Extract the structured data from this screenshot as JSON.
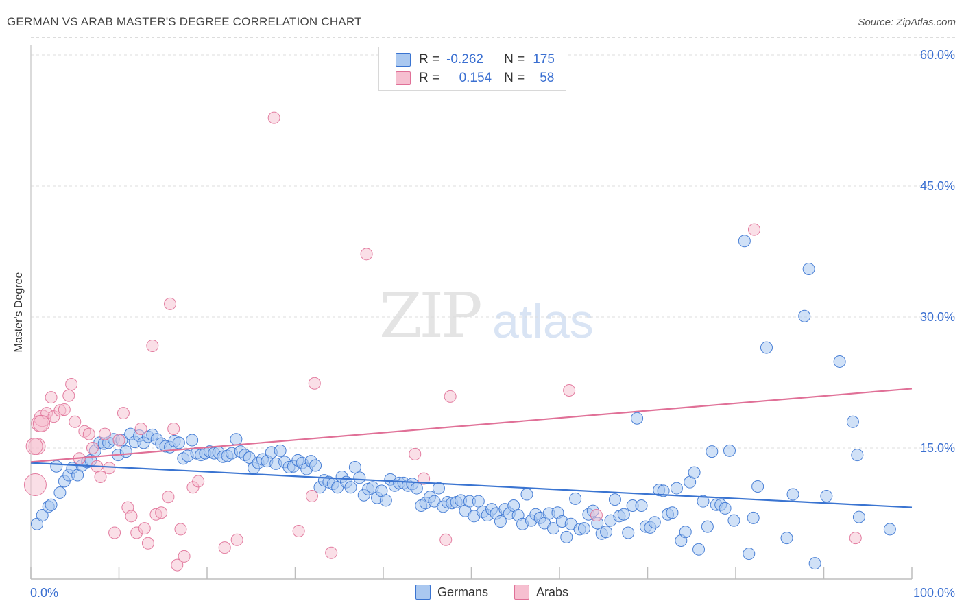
{
  "title": "GERMAN VS ARAB MASTER'S DEGREE CORRELATION CHART",
  "source": "Source: ZipAtlas.com",
  "watermark": {
    "zip": "ZIP",
    "atlas": "atlas"
  },
  "colors": {
    "blue": "#3a74d1",
    "blue_fill": "#aac8f0",
    "pink": "#e07097",
    "pink_fill": "#f6bfd0",
    "grid": "#dcdcdc",
    "tick_label": "#3a6fd1"
  },
  "legend_top": {
    "rows": [
      {
        "r_label": "R =",
        "r_value": "-0.262",
        "n_label": "N =",
        "n_value": "175"
      },
      {
        "r_label": "R =",
        "r_value": "0.154",
        "n_label": "N =",
        "n_value": "58"
      }
    ]
  },
  "legend_bottom": {
    "germans": "Germans",
    "arabs": "Arabs"
  },
  "chart_data": {
    "type": "scatter",
    "title": "GERMAN VS ARAB MASTER'S DEGREE CORRELATION CHART",
    "xlabel": "",
    "ylabel": "Master's Degree",
    "xlim": [
      0,
      100
    ],
    "ylim": [
      0,
      62
    ],
    "x_tick_labels": [
      "0.0%",
      "100.0%"
    ],
    "y_ticks": [
      15,
      30,
      45,
      60
    ],
    "y_tick_labels": [
      "15.0%",
      "30.0%",
      "45.0%",
      "60.0%"
    ],
    "grid": "horizontal dashed",
    "legend": "bottom-center",
    "series": [
      {
        "name": "Germans",
        "color": "#3a74d1",
        "trend": {
          "x": [
            0,
            100
          ],
          "y": [
            13.3,
            8.2
          ]
        },
        "points": [
          [
            0.7,
            6.3
          ],
          [
            1.3,
            7.3
          ],
          [
            2.0,
            8.3
          ],
          [
            2.3,
            8.5
          ],
          [
            2.9,
            12.9
          ],
          [
            3.3,
            9.9
          ],
          [
            3.8,
            11.2
          ],
          [
            4.3,
            11.9
          ],
          [
            4.7,
            12.7
          ],
          [
            5.3,
            11.9
          ],
          [
            5.8,
            13.0
          ],
          [
            6.4,
            13.4
          ],
          [
            6.8,
            13.6
          ],
          [
            7.3,
            14.7
          ],
          [
            7.8,
            15.6
          ],
          [
            8.3,
            15.5
          ],
          [
            8.8,
            15.6
          ],
          [
            9.4,
            16.0
          ],
          [
            9.9,
            14.2
          ],
          [
            10.3,
            15.9
          ],
          [
            10.8,
            14.6
          ],
          [
            11.3,
            16.6
          ],
          [
            11.8,
            15.7
          ],
          [
            12.3,
            16.4
          ],
          [
            12.8,
            15.6
          ],
          [
            13.3,
            16.3
          ],
          [
            13.8,
            16.5
          ],
          [
            14.3,
            16.0
          ],
          [
            14.8,
            15.5
          ],
          [
            15.3,
            15.2
          ],
          [
            15.8,
            15.1
          ],
          [
            16.3,
            15.8
          ],
          [
            16.8,
            15.6
          ],
          [
            17.3,
            13.8
          ],
          [
            17.8,
            14.1
          ],
          [
            18.3,
            15.9
          ],
          [
            18.8,
            14.4
          ],
          [
            19.3,
            14.2
          ],
          [
            19.8,
            14.4
          ],
          [
            20.3,
            14.6
          ],
          [
            20.8,
            14.4
          ],
          [
            21.3,
            14.5
          ],
          [
            21.8,
            14.0
          ],
          [
            22.3,
            14.1
          ],
          [
            22.8,
            14.4
          ],
          [
            23.3,
            16.0
          ],
          [
            23.8,
            14.6
          ],
          [
            24.3,
            14.2
          ],
          [
            24.8,
            13.9
          ],
          [
            25.3,
            12.7
          ],
          [
            25.8,
            13.3
          ],
          [
            26.3,
            13.7
          ],
          [
            26.8,
            13.5
          ],
          [
            27.3,
            14.5
          ],
          [
            27.8,
            13.2
          ],
          [
            28.3,
            14.7
          ],
          [
            28.8,
            13.4
          ],
          [
            29.3,
            12.8
          ],
          [
            29.8,
            12.9
          ],
          [
            30.3,
            13.6
          ],
          [
            30.8,
            13.3
          ],
          [
            31.3,
            12.6
          ],
          [
            31.8,
            13.5
          ],
          [
            32.3,
            13.0
          ],
          [
            32.8,
            10.5
          ],
          [
            33.3,
            11.3
          ],
          [
            33.8,
            11.1
          ],
          [
            34.3,
            10.9
          ],
          [
            34.8,
            10.5
          ],
          [
            35.3,
            11.7
          ],
          [
            35.8,
            11.1
          ],
          [
            36.3,
            10.5
          ],
          [
            36.8,
            12.8
          ],
          [
            37.3,
            11.6
          ],
          [
            37.8,
            9.6
          ],
          [
            38.3,
            10.3
          ],
          [
            38.8,
            10.5
          ],
          [
            39.3,
            9.3
          ],
          [
            39.8,
            10.1
          ],
          [
            40.3,
            9.0
          ],
          [
            40.8,
            11.4
          ],
          [
            41.3,
            10.7
          ],
          [
            41.8,
            11.0
          ],
          [
            42.3,
            11.0
          ],
          [
            42.8,
            10.7
          ],
          [
            43.3,
            10.9
          ],
          [
            43.8,
            10.4
          ],
          [
            44.3,
            8.4
          ],
          [
            44.8,
            8.7
          ],
          [
            45.3,
            9.4
          ],
          [
            45.8,
            8.9
          ],
          [
            46.3,
            10.4
          ],
          [
            46.8,
            8.3
          ],
          [
            47.3,
            8.8
          ],
          [
            47.8,
            8.7
          ],
          [
            48.3,
            8.8
          ],
          [
            48.8,
            9.0
          ],
          [
            49.3,
            7.8
          ],
          [
            49.8,
            8.9
          ],
          [
            50.3,
            7.2
          ],
          [
            50.8,
            8.9
          ],
          [
            51.3,
            7.7
          ],
          [
            51.8,
            7.3
          ],
          [
            52.3,
            8.0
          ],
          [
            52.8,
            7.5
          ],
          [
            53.3,
            6.6
          ],
          [
            53.8,
            8.0
          ],
          [
            54.3,
            7.5
          ],
          [
            54.8,
            8.4
          ],
          [
            55.3,
            7.3
          ],
          [
            55.8,
            6.3
          ],
          [
            56.3,
            9.7
          ],
          [
            56.8,
            6.7
          ],
          [
            57.3,
            7.4
          ],
          [
            57.8,
            7.0
          ],
          [
            58.3,
            6.4
          ],
          [
            58.8,
            7.5
          ],
          [
            59.3,
            5.8
          ],
          [
            59.8,
            7.6
          ],
          [
            60.3,
            6.6
          ],
          [
            60.8,
            4.8
          ],
          [
            61.3,
            6.3
          ],
          [
            61.8,
            9.2
          ],
          [
            62.3,
            5.7
          ],
          [
            62.8,
            5.8
          ],
          [
            63.3,
            7.4
          ],
          [
            63.8,
            7.8
          ],
          [
            64.3,
            6.4
          ],
          [
            64.8,
            5.2
          ],
          [
            65.3,
            5.4
          ],
          [
            65.8,
            6.7
          ],
          [
            66.3,
            9.1
          ],
          [
            66.8,
            7.2
          ],
          [
            67.3,
            7.4
          ],
          [
            67.8,
            5.3
          ],
          [
            68.3,
            8.4
          ],
          [
            68.8,
            18.4
          ],
          [
            69.3,
            8.4
          ],
          [
            69.8,
            6.0
          ],
          [
            70.3,
            5.9
          ],
          [
            70.8,
            6.5
          ],
          [
            71.3,
            10.2
          ],
          [
            71.8,
            10.1
          ],
          [
            72.3,
            7.4
          ],
          [
            72.8,
            7.6
          ],
          [
            73.3,
            10.4
          ],
          [
            73.8,
            4.4
          ],
          [
            74.3,
            5.4
          ],
          [
            74.8,
            11.1
          ],
          [
            75.3,
            12.2
          ],
          [
            75.8,
            3.4
          ],
          [
            76.3,
            8.9
          ],
          [
            76.8,
            6.0
          ],
          [
            77.3,
            14.6
          ],
          [
            77.8,
            8.5
          ],
          [
            78.3,
            8.5
          ],
          [
            78.8,
            8.1
          ],
          [
            79.3,
            14.7
          ],
          [
            79.8,
            6.7
          ],
          [
            81.0,
            38.7
          ],
          [
            81.5,
            2.9
          ],
          [
            82.0,
            7.0
          ],
          [
            82.5,
            10.6
          ],
          [
            83.5,
            26.5
          ],
          [
            85.8,
            4.7
          ],
          [
            86.5,
            9.7
          ],
          [
            87.8,
            30.1
          ],
          [
            88.3,
            35.5
          ],
          [
            89.0,
            1.8
          ],
          [
            90.3,
            9.5
          ],
          [
            91.8,
            24.9
          ],
          [
            93.3,
            18.0
          ],
          [
            93.8,
            14.2
          ],
          [
            94.0,
            7.1
          ],
          [
            97.5,
            5.7
          ]
        ]
      },
      {
        "name": "Arabs",
        "color": "#e07097",
        "trend": {
          "x": [
            0,
            100
          ],
          "y": [
            13.4,
            21.8
          ]
        },
        "points": [
          [
            0.5,
            10.8
          ],
          [
            0.7,
            15.2
          ],
          [
            1.0,
            17.8
          ],
          [
            1.3,
            18.4
          ],
          [
            1.8,
            19.0
          ],
          [
            2.3,
            20.8
          ],
          [
            2.6,
            18.6
          ],
          [
            3.3,
            19.3
          ],
          [
            3.8,
            19.4
          ],
          [
            4.3,
            21.0
          ],
          [
            4.6,
            22.3
          ],
          [
            5.0,
            18.0
          ],
          [
            5.5,
            13.8
          ],
          [
            6.1,
            16.9
          ],
          [
            6.6,
            16.6
          ],
          [
            7.0,
            15.0
          ],
          [
            7.5,
            12.9
          ],
          [
            7.9,
            11.7
          ],
          [
            8.4,
            16.6
          ],
          [
            8.9,
            12.7
          ],
          [
            9.5,
            5.3
          ],
          [
            10.0,
            15.9
          ],
          [
            10.5,
            19.0
          ],
          [
            11.0,
            8.2
          ],
          [
            11.4,
            7.2
          ],
          [
            12.0,
            5.3
          ],
          [
            12.5,
            17.2
          ],
          [
            12.9,
            5.8
          ],
          [
            13.3,
            4.1
          ],
          [
            13.8,
            26.7
          ],
          [
            14.2,
            7.4
          ],
          [
            14.8,
            7.6
          ],
          [
            15.6,
            9.4
          ],
          [
            15.8,
            31.5
          ],
          [
            16.2,
            17.2
          ],
          [
            16.6,
            1.6
          ],
          [
            17.0,
            5.7
          ],
          [
            17.4,
            2.6
          ],
          [
            18.4,
            10.5
          ],
          [
            19.0,
            11.2
          ],
          [
            22.0,
            3.6
          ],
          [
            23.4,
            4.5
          ],
          [
            27.6,
            52.8
          ],
          [
            30.4,
            5.5
          ],
          [
            31.9,
            9.5
          ],
          [
            32.2,
            22.4
          ],
          [
            34.1,
            3.0
          ],
          [
            38.1,
            37.2
          ],
          [
            43.6,
            14.3
          ],
          [
            44.6,
            11.5
          ],
          [
            47.1,
            4.5
          ],
          [
            47.6,
            20.9
          ],
          [
            61.1,
            21.6
          ],
          [
            64.2,
            7.3
          ],
          [
            82.1,
            40.0
          ],
          [
            93.6,
            4.7
          ],
          [
            0.4,
            15.2
          ],
          [
            1.2,
            17.8
          ]
        ]
      }
    ]
  }
}
